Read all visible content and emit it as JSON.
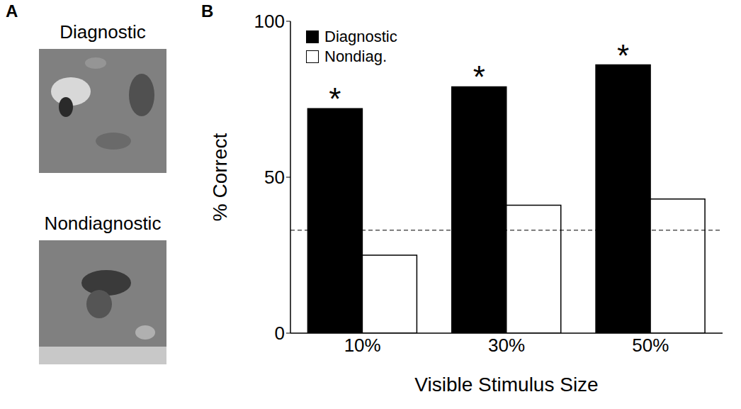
{
  "panel_a": {
    "label": "A",
    "image_titles": [
      "Diagnostic",
      "Nondiagnostic"
    ]
  },
  "chart_data": {
    "type": "bar",
    "panel_label": "B",
    "categories": [
      "10%",
      "30%",
      "50%"
    ],
    "series": [
      {
        "name": "Diagnostic",
        "color": "#000000",
        "values": [
          72,
          79,
          86
        ]
      },
      {
        "name": "Nondiag.",
        "color": "#ffffff",
        "values": [
          25,
          41,
          43
        ]
      }
    ],
    "x_label": "Visible Stimulus Size",
    "y_label": "% Correct",
    "ylim": [
      0,
      100
    ],
    "yticks": [
      0,
      50,
      100
    ],
    "legend": "upper left",
    "reference_line": 33,
    "annotations": [
      {
        "text": "*",
        "category": "10%",
        "series": "Diagnostic"
      },
      {
        "text": "*",
        "category": "30%",
        "series": "Diagnostic"
      },
      {
        "text": "*",
        "category": "50%",
        "series": "Diagnostic"
      }
    ]
  }
}
